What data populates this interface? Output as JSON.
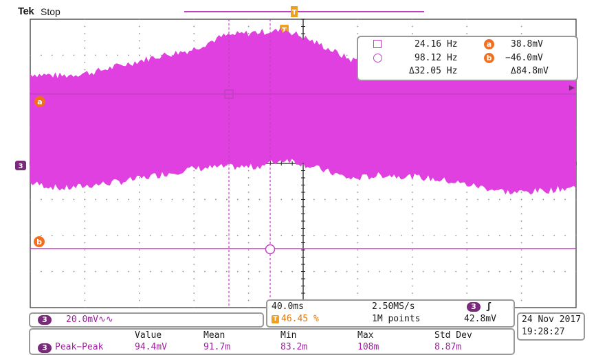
{
  "header": {
    "brand": "Tek",
    "state": "Stop"
  },
  "trigger": {
    "marker": "T",
    "position_percent": 46.45
  },
  "channel_marker": "3",
  "cursors": {
    "a_label": "a",
    "b_label": "b",
    "a_value": "38.8mV",
    "b_value": "−46.0mV",
    "delta_v": "Δ84.8mV",
    "freq_1": "24.16 Hz",
    "freq_2": "98.12 Hz",
    "delta_f": "Δ32.05 Hz"
  },
  "channel_panel": {
    "channel": "3",
    "scale": "20.0mV∿∿"
  },
  "timebase": {
    "time_div": "40.0ms",
    "sample_rate": "2.50MS/s",
    "trigger_pos": "46.45 %",
    "record_length": "1M points",
    "trig_channel": "3",
    "trig_slope": "ʃ",
    "trig_level": "42.8mV"
  },
  "datetime": {
    "date": "24 Nov 2017",
    "time": "19:28:27"
  },
  "measurement": {
    "headers": [
      "Value",
      "Mean",
      "Min",
      "Max",
      "Std Dev"
    ],
    "channel": "3",
    "name": "Peak−Peak",
    "values": [
      "94.4mV",
      "91.7m",
      "83.2m",
      "108m",
      "8.87m"
    ]
  },
  "colors": {
    "trace": "#e040e0",
    "cursor": "#c040c0",
    "trigger": "#f0a020",
    "marker": "#f07020",
    "grid": "#555555"
  },
  "waveform": {
    "upper_envelope": [
      -0.3,
      -0.4,
      -0.2,
      0.2,
      0.6,
      0.9,
      1.6,
      1.8,
      1.9,
      1.2,
      0.4,
      0.6,
      0.8,
      0.5,
      -0.2,
      -0.6,
      -0.3,
      -0.4
    ],
    "lower_envelope": [
      -3.7,
      -4.0,
      -3.8,
      -3.6,
      -3.3,
      -3.0,
      -2.9,
      -2.9,
      -2.5,
      -3.0,
      -3.5,
      -3.3,
      -3.4,
      -3.6,
      -3.9,
      -4.2,
      -4.1,
      -3.9
    ]
  }
}
